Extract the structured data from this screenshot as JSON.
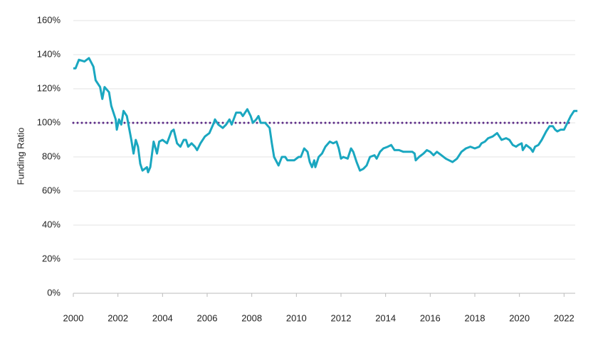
{
  "chart_data": {
    "type": "line",
    "y_label": "Funding Ratio",
    "color": "#1aa7c0",
    "reference_line": {
      "value": 100,
      "color": "#5b2a86"
    },
    "grid": true,
    "xlim": [
      2000,
      2022.5
    ],
    "xticks": [
      2000,
      2002,
      2004,
      2006,
      2008,
      2010,
      2012,
      2014,
      2016,
      2018,
      2020,
      2022
    ],
    "ylim": [
      0,
      160
    ],
    "yticks": [
      {
        "value": 0,
        "label": "0%"
      },
      {
        "value": 20,
        "label": "20%"
      },
      {
        "value": 40,
        "label": "40%"
      },
      {
        "value": 60,
        "label": "60%"
      },
      {
        "value": 80,
        "label": "80%"
      },
      {
        "value": 100,
        "label": "100%"
      },
      {
        "value": 120,
        "label": "120%"
      },
      {
        "value": 140,
        "label": "140%"
      },
      {
        "value": 160,
        "label": "160%"
      }
    ],
    "x": [
      2000.0,
      2000.1,
      2000.25,
      2000.5,
      2000.7,
      2000.9,
      2001.0,
      2001.2,
      2001.3,
      2001.4,
      2001.6,
      2001.7,
      2001.9,
      2001.95,
      2002.05,
      2002.15,
      2002.25,
      2002.4,
      2002.5,
      2002.6,
      2002.7,
      2002.8,
      2002.9,
      2003.0,
      2003.1,
      2003.3,
      2003.35,
      2003.45,
      2003.6,
      2003.75,
      2003.85,
      2004.0,
      2004.2,
      2004.4,
      2004.5,
      2004.65,
      2004.8,
      2004.95,
      2005.05,
      2005.15,
      2005.3,
      2005.45,
      2005.55,
      2005.7,
      2005.9,
      2006.1,
      2006.3,
      2006.35,
      2006.5,
      2006.7,
      2006.85,
      2007.0,
      2007.1,
      2007.3,
      2007.5,
      2007.6,
      2007.8,
      2007.95,
      2008.05,
      2008.2,
      2008.3,
      2008.4,
      2008.6,
      2008.8,
      2008.9,
      2009.0,
      2009.2,
      2009.35,
      2009.5,
      2009.6,
      2009.9,
      2010.1,
      2010.2,
      2010.35,
      2010.5,
      2010.6,
      2010.7,
      2010.8,
      2010.85,
      2011.0,
      2011.15,
      2011.3,
      2011.5,
      2011.65,
      2011.8,
      2011.9,
      2012.0,
      2012.1,
      2012.3,
      2012.45,
      2012.55,
      2012.7,
      2012.85,
      2013.0,
      2013.15,
      2013.3,
      2013.5,
      2013.6,
      2013.75,
      2013.9,
      2014.1,
      2014.25,
      2014.4,
      2014.6,
      2014.8,
      2015.0,
      2015.2,
      2015.3,
      2015.35,
      2015.5,
      2015.7,
      2015.85,
      2016.0,
      2016.15,
      2016.3,
      2016.5,
      2016.7,
      2016.85,
      2017.0,
      2017.2,
      2017.4,
      2017.6,
      2017.8,
      2018.0,
      2018.2,
      2018.3,
      2018.45,
      2018.6,
      2018.8,
      2019.0,
      2019.1,
      2019.2,
      2019.4,
      2019.55,
      2019.7,
      2019.85,
      2019.95,
      2020.1,
      2020.15,
      2020.3,
      2020.5,
      2020.6,
      2020.7,
      2020.85,
      2021.0,
      2021.2,
      2021.35,
      2021.5,
      2021.6,
      2021.7,
      2021.85,
      2022.0,
      2022.15,
      2022.3,
      2022.45,
      2022.6
    ],
    "values": [
      132,
      132,
      137,
      136,
      138,
      133,
      125,
      121,
      114,
      121,
      118,
      110,
      102,
      96,
      102,
      99,
      107,
      104,
      97,
      90,
      82,
      90,
      86,
      76,
      72,
      74,
      71,
      74,
      89,
      82,
      89,
      90,
      88,
      95,
      96,
      88,
      86,
      90,
      90,
      86,
      88,
      86,
      84,
      88,
      92,
      94,
      100,
      102,
      99,
      97,
      99,
      102,
      99,
      106,
      106,
      104,
      108,
      104,
      100,
      102,
      104,
      100,
      100,
      97,
      88,
      80,
      75,
      80,
      80,
      78,
      78,
      80,
      80,
      85,
      83,
      77,
      74,
      78,
      74,
      80,
      82,
      86,
      89,
      88,
      89,
      85,
      79,
      80,
      79,
      85,
      83,
      77,
      72,
      73,
      75,
      80,
      81,
      79,
      83,
      85,
      86,
      87,
      84,
      84,
      83,
      83,
      83,
      82,
      78,
      80,
      82,
      84,
      83,
      81,
      83,
      81,
      79,
      78,
      77,
      79,
      83,
      85,
      86,
      85,
      86,
      88,
      89,
      91,
      92,
      94,
      92,
      90,
      91,
      90,
      87,
      86,
      87,
      88,
      84,
      87,
      85,
      83,
      86,
      87,
      90,
      95,
      98,
      98,
      96,
      95,
      96,
      96,
      100,
      104,
      107,
      107
    ]
  }
}
